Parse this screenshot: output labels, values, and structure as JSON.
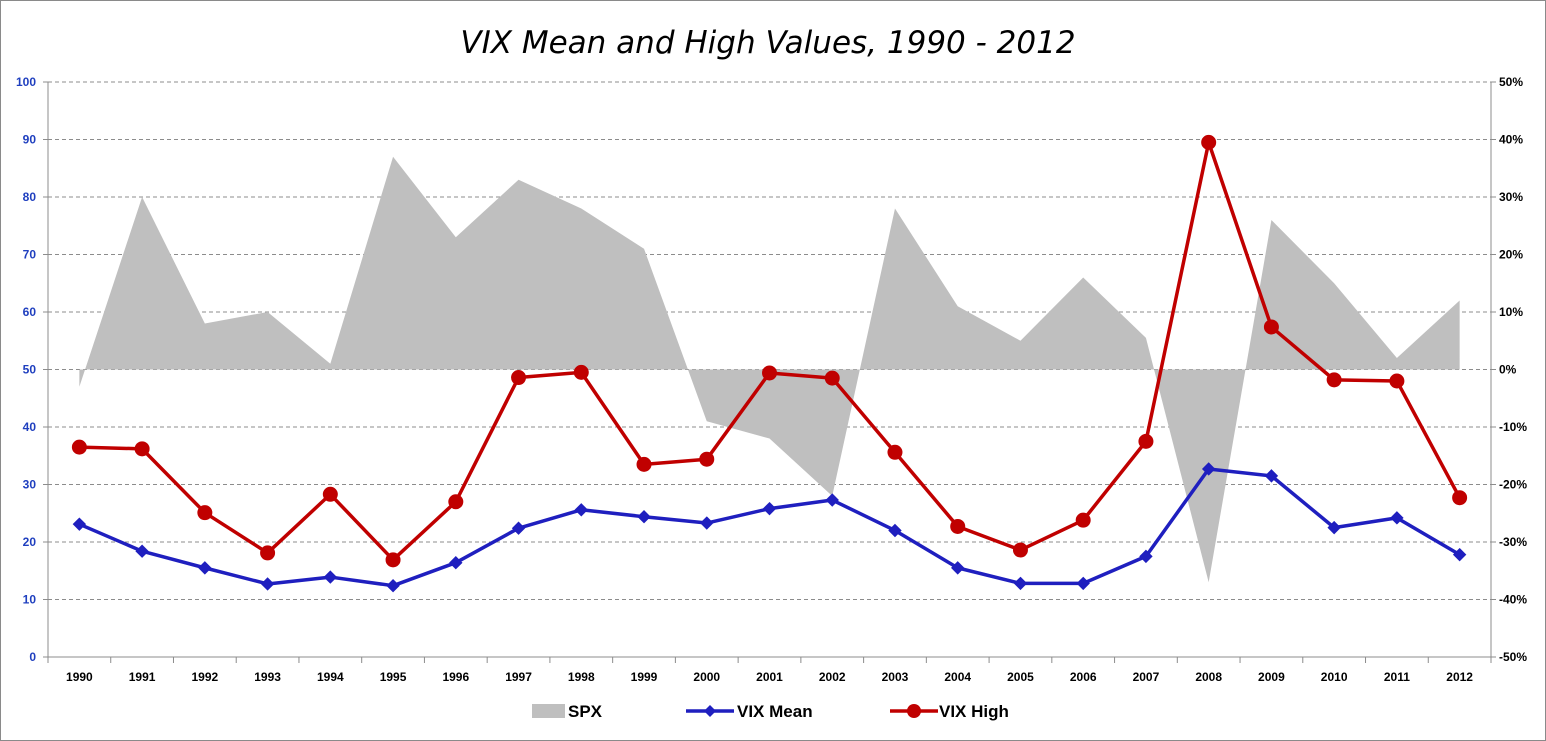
{
  "chart_data": {
    "type": "line",
    "title": "VIX Mean and High Values, 1990 - 2012",
    "categories": [
      "1990",
      "1991",
      "1992",
      "1993",
      "1994",
      "1995",
      "1996",
      "1997",
      "1998",
      "1999",
      "2000",
      "2001",
      "2002",
      "2003",
      "2004",
      "2005",
      "2006",
      "2007",
      "2008",
      "2009",
      "2010",
      "2011",
      "2012"
    ],
    "y_left": {
      "ylim": [
        0,
        100
      ],
      "ticks": [
        "0",
        "10",
        "20",
        "30",
        "40",
        "50",
        "60",
        "70",
        "80",
        "90",
        "100"
      ]
    },
    "y_right": {
      "ylim": [
        -0.5,
        0.5
      ],
      "ticks": [
        "-50%",
        "-40%",
        "-30%",
        "-20%",
        "-10%",
        "0%",
        "10%",
        "20%",
        "30%",
        "40%",
        "50%"
      ]
    },
    "grid": "horizontal dashed",
    "legend_position": "bottom",
    "series": [
      {
        "name": "SPX",
        "type": "area",
        "axis": "right",
        "color": "#bfbfbf",
        "values": [
          -0.03,
          0.3,
          0.08,
          0.1,
          0.01,
          0.37,
          0.23,
          0.33,
          0.28,
          0.21,
          -0.09,
          -0.12,
          -0.22,
          0.28,
          0.11,
          0.05,
          0.16,
          0.055,
          -0.37,
          0.26,
          0.15,
          0.02,
          0.12
        ]
      },
      {
        "name": "VIX Mean",
        "type": "line",
        "axis": "left",
        "marker": "diamond",
        "color": "#1f1fbf",
        "values": [
          23.1,
          18.4,
          15.5,
          12.7,
          13.9,
          12.4,
          16.4,
          22.4,
          25.6,
          24.4,
          23.3,
          25.8,
          27.3,
          22.0,
          15.5,
          12.8,
          12.8,
          17.5,
          32.7,
          31.5,
          22.5,
          24.2,
          17.8
        ]
      },
      {
        "name": "VIX High",
        "type": "line",
        "axis": "left",
        "marker": "circle",
        "color": "#c00000",
        "values": [
          36.5,
          36.2,
          25.1,
          18.1,
          28.3,
          16.9,
          27.0,
          48.6,
          49.5,
          33.5,
          34.4,
          49.4,
          48.5,
          35.6,
          22.7,
          18.6,
          23.8,
          37.5,
          89.5,
          57.4,
          48.2,
          48.0,
          27.7
        ]
      }
    ]
  }
}
